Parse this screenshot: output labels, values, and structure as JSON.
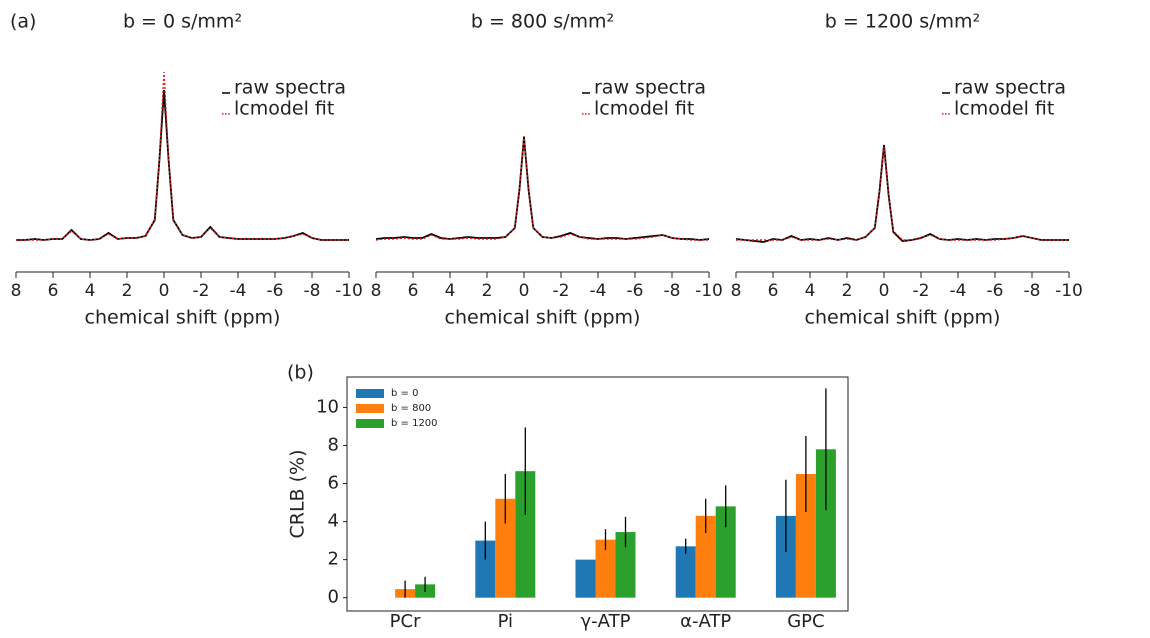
{
  "panel_labels": [
    "(a)",
    "(b)"
  ],
  "chart_data": [
    {
      "type": "line",
      "title": "b = 0 s/mm²",
      "x_label": "chemical shift (ppm)",
      "x": [
        8,
        7.5,
        7,
        6.5,
        6,
        5.5,
        5,
        4.5,
        4,
        3.5,
        3,
        2.5,
        2,
        1.5,
        1,
        0.5,
        0.25,
        0,
        -0.25,
        -0.5,
        -1,
        -1.5,
        -2,
        -2.5,
        -3,
        -3.5,
        -4,
        -4.5,
        -5,
        -5.5,
        -6,
        -6.5,
        -7,
        -7.5,
        -8,
        -8.5,
        -9,
        -9.5,
        -10
      ],
      "xlim": [
        8,
        -10
      ],
      "xticks": [
        8,
        6,
        4,
        2,
        0,
        -2,
        -4,
        -6,
        -8,
        -10
      ],
      "ylim": [
        -15,
        170
      ],
      "series": [
        {
          "name": "raw spectra",
          "color": "#000000",
          "values": [
            0,
            0,
            1,
            0,
            1,
            1,
            10,
            1,
            0,
            1,
            7,
            1,
            2,
            2,
            4,
            20,
            80,
            150,
            80,
            20,
            5,
            2,
            3,
            13,
            3,
            2,
            1,
            1,
            1,
            1,
            1,
            2,
            4,
            7,
            2,
            0,
            0,
            0,
            0
          ]
        },
        {
          "name": "lcmodel fit",
          "color": "#e31a1c",
          "values": [
            0,
            0,
            0,
            0,
            1,
            1,
            9,
            1,
            0,
            1,
            6,
            1,
            2,
            2,
            4,
            21,
            82,
            168,
            82,
            21,
            5,
            2,
            3,
            12,
            3,
            2,
            1,
            1,
            1,
            1,
            1,
            2,
            4,
            6,
            2,
            0,
            0,
            0,
            0
          ]
        }
      ]
    },
    {
      "type": "line",
      "title": "b = 800 s/mm²",
      "x_label": "chemical shift (ppm)",
      "x": [
        8,
        7.5,
        7,
        6.5,
        6,
        5.5,
        5,
        4.5,
        4,
        3.5,
        3,
        2.5,
        2,
        1.5,
        1,
        0.5,
        0.25,
        0,
        -0.25,
        -0.5,
        -1,
        -1.5,
        -2,
        -2.5,
        -3,
        -3.5,
        -4,
        -4.5,
        -5,
        -5.5,
        -6,
        -6.5,
        -7,
        -7.5,
        -8,
        -8.5,
        -9,
        -9.5,
        -10
      ],
      "xlim": [
        8,
        -10
      ],
      "xticks": [
        8,
        6,
        4,
        2,
        0,
        -2,
        -4,
        -6,
        -8,
        -10
      ],
      "ylim": [
        -15,
        170
      ],
      "series": [
        {
          "name": "raw spectra",
          "color": "#000000",
          "values": [
            1,
            2,
            2,
            3,
            2,
            2,
            6,
            2,
            1,
            2,
            3,
            2,
            2,
            2,
            3,
            12,
            50,
            103,
            50,
            12,
            3,
            2,
            4,
            7,
            3,
            2,
            1,
            2,
            2,
            1,
            2,
            3,
            4,
            5,
            2,
            1,
            1,
            0,
            1
          ]
        },
        {
          "name": "lcmodel fit",
          "color": "#e31a1c",
          "values": [
            0,
            1,
            1,
            2,
            1,
            1,
            5,
            1,
            1,
            1,
            2,
            1,
            1,
            1,
            3,
            12,
            51,
            104,
            51,
            12,
            3,
            2,
            3,
            6,
            3,
            1,
            1,
            1,
            1,
            1,
            1,
            2,
            3,
            5,
            2,
            1,
            0,
            0,
            0
          ]
        }
      ]
    },
    {
      "type": "line",
      "title": "b = 1200 s/mm²",
      "x_label": "chemical shift (ppm)",
      "x": [
        8,
        7.5,
        7,
        6.5,
        6,
        5.5,
        5,
        4.5,
        4,
        3.5,
        3,
        2.5,
        2,
        1.5,
        1,
        0.5,
        0.25,
        0,
        -0.25,
        -0.5,
        -1,
        -1.5,
        -2,
        -2.5,
        -3,
        -3.5,
        -4,
        -4.5,
        -5,
        -5.5,
        -6,
        -6.5,
        -7,
        -7.5,
        -8,
        -8.5,
        -9,
        -9.5,
        -10
      ],
      "xlim": [
        8,
        -10
      ],
      "xticks": [
        8,
        6,
        4,
        2,
        0,
        -2,
        -4,
        -6,
        -8,
        -10
      ],
      "ylim": [
        -15,
        170
      ],
      "series": [
        {
          "name": "raw spectra",
          "color": "#000000",
          "values": [
            1,
            0,
            -1,
            -2,
            1,
            0,
            4,
            0,
            1,
            0,
            2,
            0,
            2,
            0,
            3,
            12,
            48,
            95,
            45,
            8,
            -1,
            0,
            2,
            6,
            1,
            0,
            1,
            0,
            1,
            0,
            1,
            1,
            2,
            4,
            2,
            0,
            0,
            0,
            0
          ]
        },
        {
          "name": "lcmodel fit",
          "color": "#e31a1c",
          "values": [
            0,
            0,
            0,
            0,
            0,
            0,
            3,
            0,
            0,
            0,
            1,
            0,
            1,
            0,
            3,
            12,
            47,
            93,
            45,
            9,
            0,
            0,
            2,
            5,
            1,
            0,
            0,
            0,
            0,
            0,
            0,
            1,
            2,
            4,
            2,
            0,
            0,
            0,
            0
          ]
        }
      ]
    },
    {
      "type": "bar",
      "y_label": "CRLB (%)",
      "categories": [
        "PCr",
        "Pi",
        "γ-ATP",
        "α-ATP",
        "GPC"
      ],
      "ylim": [
        -0.7,
        11.6
      ],
      "yticks": [
        0,
        2,
        4,
        6,
        8,
        10
      ],
      "legend": "upper-left",
      "series": [
        {
          "name": "b = 0",
          "color": "#1f77b4",
          "values": [
            0,
            3.0,
            2.0,
            2.7,
            4.3
          ],
          "errors": [
            0,
            1.0,
            0,
            0.4,
            1.9
          ]
        },
        {
          "name": "b = 800",
          "color": "#ff7f0e",
          "values": [
            0.45,
            5.2,
            3.05,
            4.3,
            6.5
          ],
          "errors": [
            0.45,
            1.3,
            0.55,
            0.9,
            2.0
          ]
        },
        {
          "name": "b = 1200",
          "color": "#2ca02c",
          "values": [
            0.7,
            6.65,
            3.45,
            4.8,
            7.8
          ],
          "errors": [
            0.4,
            2.3,
            0.8,
            1.1,
            3.2
          ]
        }
      ]
    }
  ]
}
